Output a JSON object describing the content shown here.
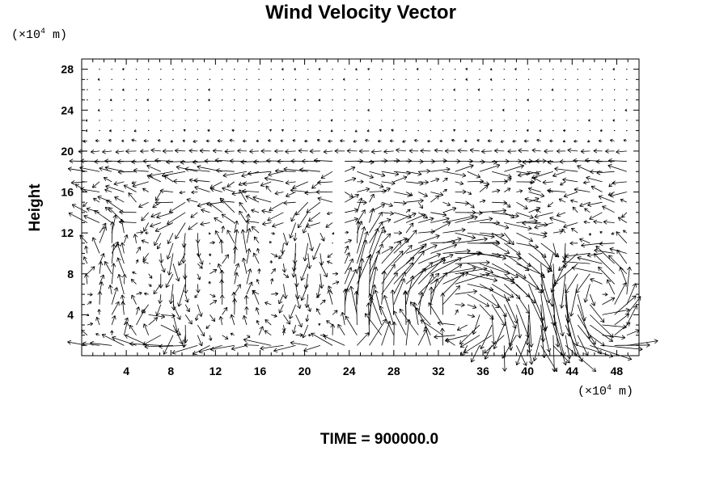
{
  "chart_data": {
    "type": "vector_field",
    "title": "Wind Velocity Vector",
    "ylabel": "Height",
    "x_unit": {
      "prefix": "(×10",
      "exp": "4",
      "suffix": " m)"
    },
    "y_unit": {
      "prefix": "(×10",
      "exp": "4",
      "suffix": " m)"
    },
    "footer": "TIME = 900000.0",
    "xlim": [
      0,
      50
    ],
    "ylim": [
      0,
      29
    ],
    "xticks": [
      "4",
      "8",
      "12",
      "16",
      "20",
      "24",
      "28",
      "32",
      "36",
      "40",
      "44",
      "48"
    ],
    "yticks": [
      "4",
      "8",
      "12",
      "16",
      "20",
      "24",
      "28"
    ],
    "grid": false,
    "arrow_color": "#000000",
    "background": "#ffffff",
    "field": {
      "x_spacing": 1.1,
      "y_spacing": 1.0,
      "flow_layer_top": 19,
      "main_vortex_center": [
        34,
        4
      ],
      "secondary_vortex_center": [
        46,
        6
      ]
    }
  }
}
